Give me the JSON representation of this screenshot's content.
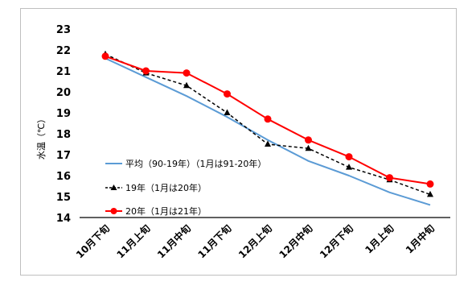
{
  "chart_data": {
    "type": "line",
    "title": "",
    "xlabel": "",
    "ylabel": "水温（℃）",
    "ylim": [
      14,
      23
    ],
    "yticks": [
      14,
      15,
      16,
      17,
      18,
      19,
      20,
      21,
      22,
      23
    ],
    "grid": false,
    "legend_position": "left",
    "categories": [
      "10月下旬",
      "11月上旬",
      "11月中旬",
      "11月下旬",
      "12月上旬",
      "12月中旬",
      "12月下旬",
      "1月上旬",
      "1月中旬"
    ],
    "series": [
      {
        "name": "平均（90-19年）（1月は91-20年）",
        "color": "#5b9bd5",
        "style": "solid",
        "marker": "none",
        "values": [
          21.6,
          20.7,
          19.8,
          18.8,
          17.7,
          16.7,
          16.0,
          15.2,
          14.6
        ]
      },
      {
        "name": "19年（1月は20年）",
        "color": "#000000",
        "style": "dashed",
        "marker": "triangle",
        "values": [
          21.8,
          20.9,
          20.3,
          19.0,
          17.5,
          17.3,
          16.4,
          15.8,
          15.1
        ]
      },
      {
        "name": "20年（1月は21年）",
        "color": "#ff0000",
        "style": "solid",
        "marker": "circle",
        "values": [
          21.7,
          21.0,
          20.9,
          19.9,
          18.7,
          17.7,
          16.9,
          15.9,
          15.6
        ]
      }
    ]
  }
}
